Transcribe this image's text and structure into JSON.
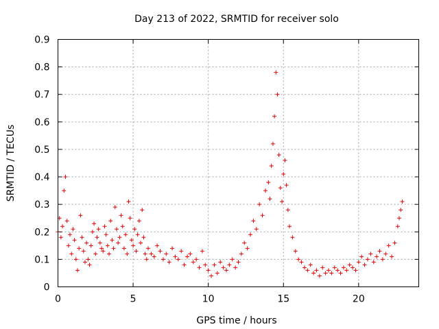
{
  "chart_data": {
    "type": "scatter",
    "title": "Day 213 of 2022, SRMTID for receiver solo",
    "xlabel": "GPS time / hours",
    "ylabel": "SRMTID / TECUs",
    "xlim": [
      0,
      24
    ],
    "ylim": [
      0,
      0.9
    ],
    "xticks": [
      0,
      5,
      10,
      15,
      20
    ],
    "yticks": [
      0,
      0.1,
      0.2,
      0.3,
      0.4,
      0.5,
      0.6,
      0.7,
      0.8,
      0.9
    ],
    "xtick_labels": [
      "0",
      "5",
      "10",
      "15",
      "20"
    ],
    "ytick_labels": [
      "0",
      "0.1",
      "0.2",
      "0.3",
      "0.4",
      "0.5",
      "0.6",
      "0.7",
      "0.8",
      "0.9"
    ],
    "grid": true,
    "marker": "plus",
    "color": "#e00000",
    "series": [
      {
        "name": "SRMTID",
        "x": [
          0.0,
          0.1,
          0.2,
          0.3,
          0.4,
          0.5,
          0.6,
          0.7,
          0.8,
          0.9,
          1.0,
          1.1,
          1.2,
          1.3,
          1.4,
          1.5,
          1.6,
          1.7,
          1.8,
          1.9,
          2.0,
          2.1,
          2.2,
          2.3,
          2.4,
          2.5,
          2.6,
          2.7,
          2.8,
          2.9,
          3.0,
          3.1,
          3.2,
          3.3,
          3.4,
          3.5,
          3.6,
          3.7,
          3.8,
          3.9,
          4.0,
          4.1,
          4.2,
          4.3,
          4.4,
          4.5,
          4.6,
          4.7,
          4.8,
          4.9,
          5.0,
          5.1,
          5.2,
          5.3,
          5.4,
          5.5,
          5.6,
          5.7,
          5.8,
          5.9,
          6.0,
          6.2,
          6.4,
          6.6,
          6.8,
          7.0,
          7.2,
          7.4,
          7.6,
          7.8,
          8.0,
          8.2,
          8.4,
          8.6,
          8.8,
          9.0,
          9.2,
          9.4,
          9.6,
          9.8,
          10.0,
          10.2,
          10.4,
          10.6,
          10.8,
          11.0,
          11.2,
          11.4,
          11.6,
          11.8,
          12.0,
          12.2,
          12.4,
          12.6,
          12.8,
          13.0,
          13.2,
          13.4,
          13.6,
          13.8,
          14.0,
          14.1,
          14.2,
          14.3,
          14.4,
          14.5,
          14.6,
          14.7,
          14.8,
          14.9,
          15.0,
          15.1,
          15.2,
          15.3,
          15.4,
          15.6,
          15.8,
          16.0,
          16.2,
          16.4,
          16.6,
          16.8,
          17.0,
          17.2,
          17.4,
          17.6,
          17.8,
          18.0,
          18.2,
          18.4,
          18.6,
          18.8,
          19.0,
          19.2,
          19.4,
          19.6,
          19.8,
          20.0,
          20.2,
          20.4,
          20.6,
          20.8,
          21.0,
          21.2,
          21.4,
          21.6,
          21.8,
          22.0,
          22.2,
          22.4,
          22.6,
          22.7,
          22.8,
          22.9
        ],
        "y": [
          0.2,
          0.25,
          0.18,
          0.22,
          0.35,
          0.4,
          0.24,
          0.15,
          0.19,
          0.12,
          0.21,
          0.17,
          0.1,
          0.06,
          0.14,
          0.26,
          0.18,
          0.13,
          0.09,
          0.16,
          0.1,
          0.08,
          0.15,
          0.2,
          0.23,
          0.12,
          0.18,
          0.21,
          0.16,
          0.14,
          0.13,
          0.22,
          0.19,
          0.15,
          0.12,
          0.24,
          0.17,
          0.14,
          0.29,
          0.21,
          0.16,
          0.18,
          0.26,
          0.22,
          0.14,
          0.19,
          0.12,
          0.31,
          0.25,
          0.17,
          0.15,
          0.21,
          0.13,
          0.19,
          0.24,
          0.16,
          0.28,
          0.18,
          0.12,
          0.1,
          0.14,
          0.12,
          0.11,
          0.15,
          0.13,
          0.1,
          0.12,
          0.09,
          0.14,
          0.11,
          0.1,
          0.13,
          0.08,
          0.11,
          0.12,
          0.09,
          0.1,
          0.07,
          0.13,
          0.08,
          0.06,
          0.04,
          0.08,
          0.05,
          0.09,
          0.07,
          0.06,
          0.08,
          0.1,
          0.07,
          0.09,
          0.12,
          0.16,
          0.14,
          0.19,
          0.24,
          0.21,
          0.3,
          0.26,
          0.35,
          0.38,
          0.32,
          0.44,
          0.52,
          0.62,
          0.78,
          0.7,
          0.48,
          0.36,
          0.31,
          0.41,
          0.46,
          0.37,
          0.28,
          0.22,
          0.18,
          0.13,
          0.1,
          0.09,
          0.07,
          0.06,
          0.08,
          0.05,
          0.06,
          0.04,
          0.07,
          0.05,
          0.06,
          0.05,
          0.07,
          0.06,
          0.05,
          0.07,
          0.06,
          0.08,
          0.07,
          0.06,
          0.09,
          0.11,
          0.08,
          0.1,
          0.12,
          0.09,
          0.11,
          0.13,
          0.1,
          0.12,
          0.15,
          0.11,
          0.16,
          0.22,
          0.25,
          0.28,
          0.31
        ]
      }
    ]
  }
}
